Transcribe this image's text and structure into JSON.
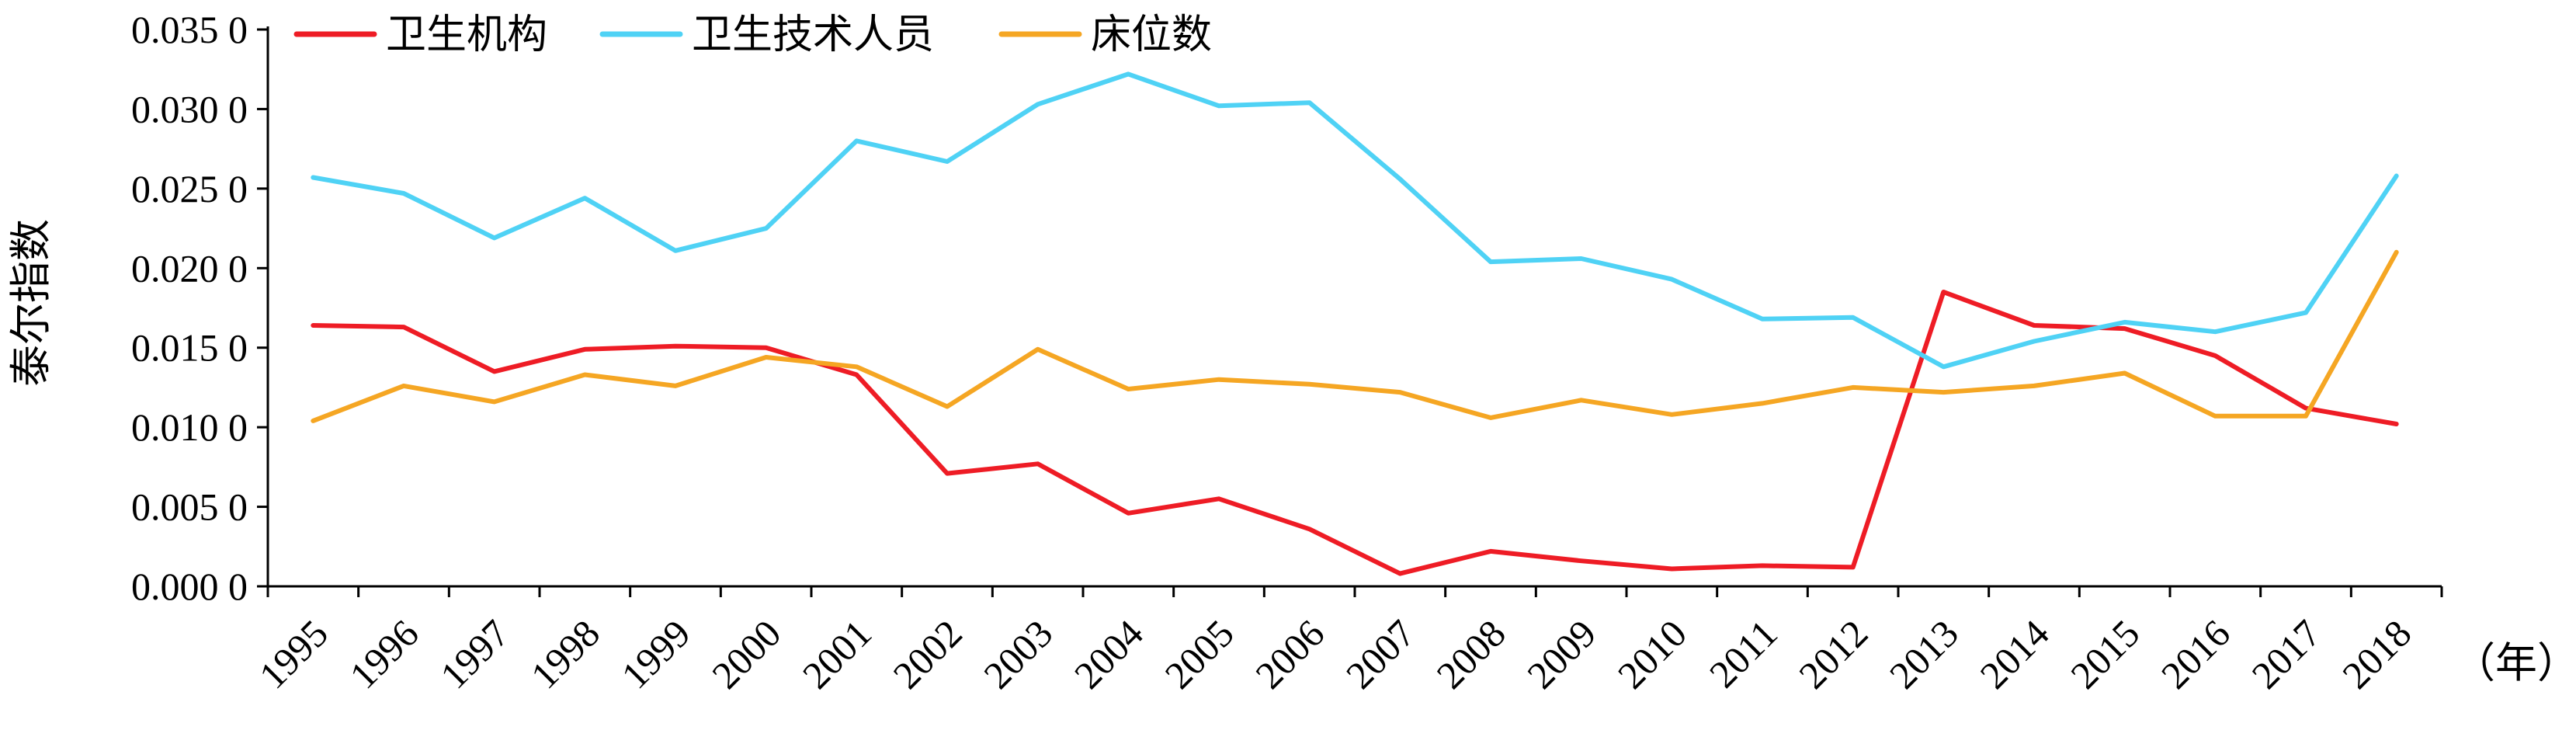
{
  "chart_data": {
    "type": "line",
    "title": "",
    "xlabel": "（年）",
    "ylabel": "泰尔指数",
    "categories": [
      "1995",
      "1996",
      "1997",
      "1998",
      "1999",
      "2000",
      "2001",
      "2002",
      "2003",
      "2004",
      "2005",
      "2006",
      "2007",
      "2008",
      "2009",
      "2010",
      "2011",
      "2012",
      "2013",
      "2014",
      "2015",
      "2016",
      "2017",
      "2018"
    ],
    "ylim": [
      0,
      0.035
    ],
    "yticks": [
      0.0,
      0.005,
      0.01,
      0.015,
      0.02,
      0.025,
      0.03,
      0.035
    ],
    "ytick_labels": [
      "0.000 0",
      "0.005 0",
      "0.010 0",
      "0.015 0",
      "0.020 0",
      "0.025 0",
      "0.030 0",
      "0.035 0"
    ],
    "grid": false,
    "legend_position": "top-left",
    "series": [
      {
        "name": "卫生机构",
        "color": "#ee1c25",
        "values": [
          0.0164,
          0.0163,
          0.0135,
          0.0149,
          0.0151,
          0.015,
          0.0133,
          0.0071,
          0.0077,
          0.0046,
          0.0055,
          0.0036,
          0.0008,
          0.0022,
          0.0016,
          0.0011,
          0.0013,
          0.0012,
          0.0185,
          0.0164,
          0.0162,
          0.0145,
          0.0112,
          0.0102
        ]
      },
      {
        "name": "卫生技术人员",
        "color": "#4fd2f5",
        "values": [
          0.0257,
          0.0247,
          0.0219,
          0.0244,
          0.0211,
          0.0225,
          0.028,
          0.0267,
          0.0303,
          0.0322,
          0.0302,
          0.0304,
          0.0256,
          0.0204,
          0.0206,
          0.0193,
          0.0168,
          0.0169,
          0.0138,
          0.0154,
          0.0166,
          0.016,
          0.0172,
          0.0258
        ]
      },
      {
        "name": "床位数",
        "color": "#f5a623",
        "values": [
          0.0104,
          0.0126,
          0.0116,
          0.0133,
          0.0126,
          0.0144,
          0.0138,
          0.0113,
          0.0149,
          0.0124,
          0.013,
          0.0127,
          0.0122,
          0.0106,
          0.0117,
          0.0108,
          0.0115,
          0.0125,
          0.0122,
          0.0126,
          0.0134,
          0.0107,
          0.0107,
          0.021
        ]
      }
    ]
  }
}
